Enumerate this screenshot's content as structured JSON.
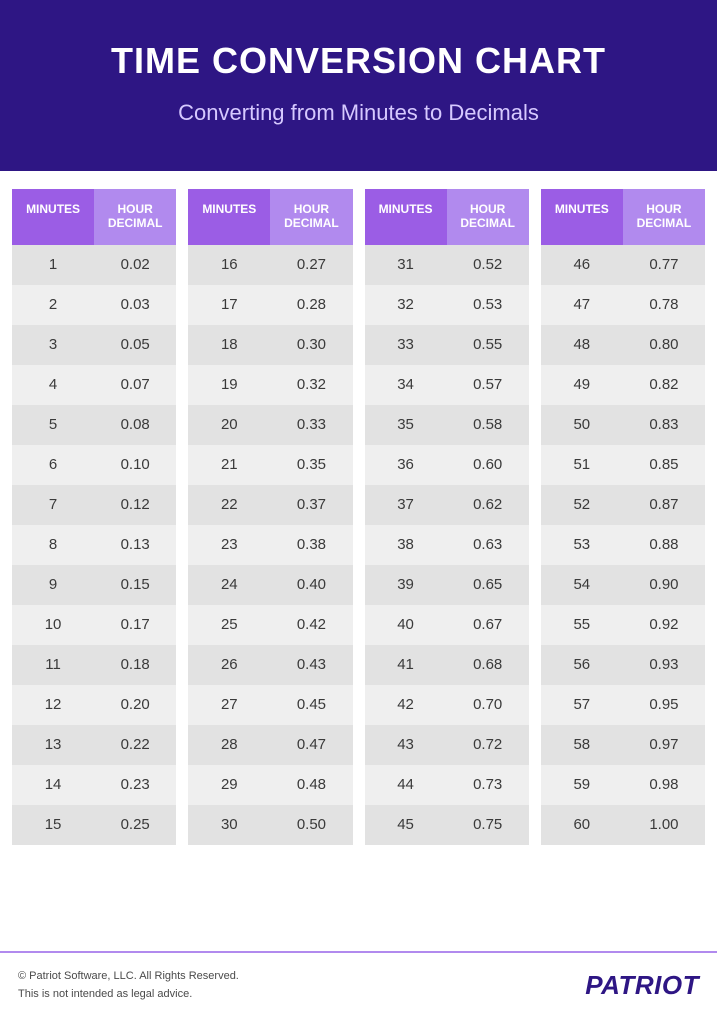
{
  "header": {
    "title": "TIME CONVERSION CHART",
    "subtitle": "Converting from Minutes to Decimals",
    "bg_color": "#2e1684",
    "title_color": "#ffffff",
    "subtitle_color": "#d6c9ff",
    "title_fontsize": 36,
    "subtitle_fontsize": 22
  },
  "table": {
    "col_header_minutes": "MINUTES",
    "col_header_decimal": "HOUR DECIMAL",
    "header_fontsize": 12,
    "cell_fontsize": 15,
    "header_bg_minutes": "#9b5de5",
    "header_bg_decimal": "#b18aee",
    "header_text_color": "#ffffff",
    "row_bg_odd": "#e2e2e2",
    "row_bg_even": "#efefef",
    "cell_text_color": "#3a3a3a",
    "columns": [
      {
        "rows": [
          {
            "m": "1",
            "d": "0.02"
          },
          {
            "m": "2",
            "d": "0.03"
          },
          {
            "m": "3",
            "d": "0.05"
          },
          {
            "m": "4",
            "d": "0.07"
          },
          {
            "m": "5",
            "d": "0.08"
          },
          {
            "m": "6",
            "d": "0.10"
          },
          {
            "m": "7",
            "d": "0.12"
          },
          {
            "m": "8",
            "d": "0.13"
          },
          {
            "m": "9",
            "d": "0.15"
          },
          {
            "m": "10",
            "d": "0.17"
          },
          {
            "m": "11",
            "d": "0.18"
          },
          {
            "m": "12",
            "d": "0.20"
          },
          {
            "m": "13",
            "d": "0.22"
          },
          {
            "m": "14",
            "d": "0.23"
          },
          {
            "m": "15",
            "d": "0.25"
          }
        ]
      },
      {
        "rows": [
          {
            "m": "16",
            "d": "0.27"
          },
          {
            "m": "17",
            "d": "0.28"
          },
          {
            "m": "18",
            "d": "0.30"
          },
          {
            "m": "19",
            "d": "0.32"
          },
          {
            "m": "20",
            "d": "0.33"
          },
          {
            "m": "21",
            "d": "0.35"
          },
          {
            "m": "22",
            "d": "0.37"
          },
          {
            "m": "23",
            "d": "0.38"
          },
          {
            "m": "24",
            "d": "0.40"
          },
          {
            "m": "25",
            "d": "0.42"
          },
          {
            "m": "26",
            "d": "0.43"
          },
          {
            "m": "27",
            "d": "0.45"
          },
          {
            "m": "28",
            "d": "0.47"
          },
          {
            "m": "29",
            "d": "0.48"
          },
          {
            "m": "30",
            "d": "0.50"
          }
        ]
      },
      {
        "rows": [
          {
            "m": "31",
            "d": "0.52"
          },
          {
            "m": "32",
            "d": "0.53"
          },
          {
            "m": "33",
            "d": "0.55"
          },
          {
            "m": "34",
            "d": "0.57"
          },
          {
            "m": "35",
            "d": "0.58"
          },
          {
            "m": "36",
            "d": "0.60"
          },
          {
            "m": "37",
            "d": "0.62"
          },
          {
            "m": "38",
            "d": "0.63"
          },
          {
            "m": "39",
            "d": "0.65"
          },
          {
            "m": "40",
            "d": "0.67"
          },
          {
            "m": "41",
            "d": "0.68"
          },
          {
            "m": "42",
            "d": "0.70"
          },
          {
            "m": "43",
            "d": "0.72"
          },
          {
            "m": "44",
            "d": "0.73"
          },
          {
            "m": "45",
            "d": "0.75"
          }
        ]
      },
      {
        "rows": [
          {
            "m": "46",
            "d": "0.77"
          },
          {
            "m": "47",
            "d": "0.78"
          },
          {
            "m": "48",
            "d": "0.80"
          },
          {
            "m": "49",
            "d": "0.82"
          },
          {
            "m": "50",
            "d": "0.83"
          },
          {
            "m": "51",
            "d": "0.85"
          },
          {
            "m": "52",
            "d": "0.87"
          },
          {
            "m": "53",
            "d": "0.88"
          },
          {
            "m": "54",
            "d": "0.90"
          },
          {
            "m": "55",
            "d": "0.92"
          },
          {
            "m": "56",
            "d": "0.93"
          },
          {
            "m": "57",
            "d": "0.95"
          },
          {
            "m": "58",
            "d": "0.97"
          },
          {
            "m": "59",
            "d": "0.98"
          },
          {
            "m": "60",
            "d": "1.00"
          }
        ]
      }
    ]
  },
  "footer": {
    "divider_color": "#b18aee",
    "copyright": "© Patriot Software, LLC. All Rights Reserved.",
    "disclaimer": "This is not intended as legal advice.",
    "text_color": "#4a4a4a",
    "text_fontsize": 11,
    "brand": "PATRIOT",
    "brand_color": "#2e1684",
    "brand_fontsize": 26
  }
}
